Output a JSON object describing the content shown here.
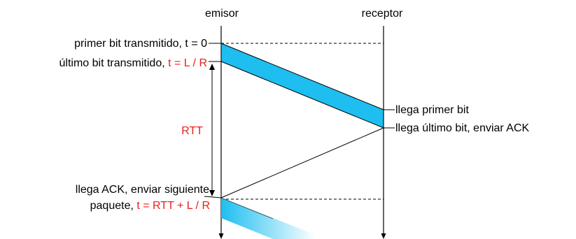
{
  "headers": {
    "sender": "emisor",
    "receiver": "receptor"
  },
  "labels": {
    "first_bit_sent": "primer bit transmitido, t = 0",
    "last_bit_sent_prefix": "último bit transmitido,",
    "last_bit_sent_time": "t = L / R",
    "rtt": "RTT",
    "first_bit_arrives": "llega primer bit",
    "last_bit_arrives": "llega último bit, enviar ACK",
    "ack_arrives": "llega ACK, enviar siguiente",
    "next_packet_prefix": "paquete,",
    "next_packet_time": "t = RTT + L / R"
  },
  "colors": {
    "packet_fill": "#1ebef0",
    "time_highlight": "#e8201c",
    "line": "#000000"
  }
}
